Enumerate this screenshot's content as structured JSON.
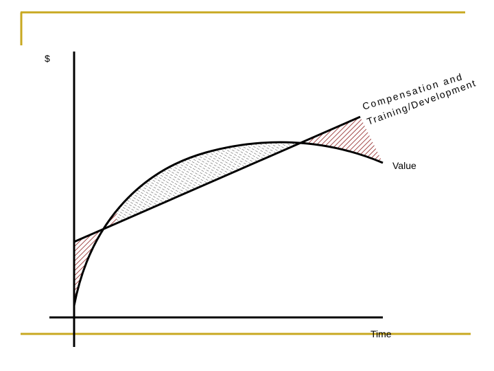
{
  "y_axis_label": "$",
  "line_label": [
    "Compensation and",
    "Training/Development"
  ],
  "curve_label": "Value",
  "x_axis_label": "Time"
}
